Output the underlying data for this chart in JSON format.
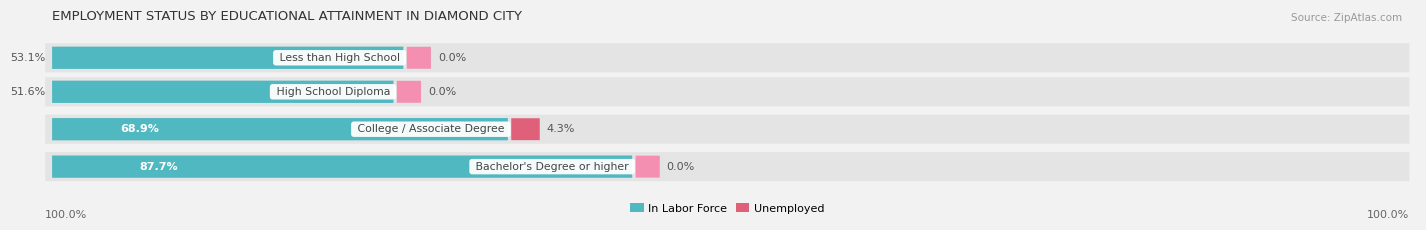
{
  "title": "EMPLOYMENT STATUS BY EDUCATIONAL ATTAINMENT IN DIAMOND CITY",
  "source": "Source: ZipAtlas.com",
  "categories": [
    "Less than High School",
    "High School Diploma",
    "College / Associate Degree",
    "Bachelor's Degree or higher"
  ],
  "in_labor_force": [
    53.1,
    51.6,
    68.9,
    87.7
  ],
  "unemployed": [
    0.0,
    0.0,
    4.3,
    0.0
  ],
  "color_labor": "#50b8c1",
  "color_unemployed": "#f48fb1",
  "color_unemployed_dark": "#e0607a",
  "color_bg_bar": "#e4e4e4",
  "color_bg_chart": "#f2f2f2",
  "color_bg_right": "#efefef",
  "axis_label_left": "100.0%",
  "axis_label_right": "100.0%",
  "legend_labor": "In Labor Force",
  "legend_unemployed": "Unemployed",
  "title_fontsize": 9.5,
  "source_fontsize": 7.5,
  "bar_label_fontsize": 8,
  "category_label_fontsize": 7.8,
  "axis_label_fontsize": 8
}
